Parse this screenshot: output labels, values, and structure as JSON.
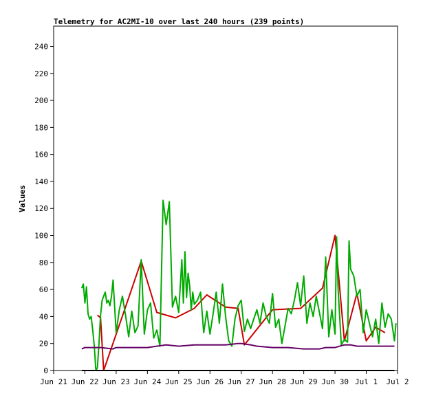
{
  "chart_data": {
    "type": "line",
    "title": "Telemetry for AC2MI-10 over last 240 hours (239 points)",
    "xlabel": "",
    "ylabel": "Values",
    "ylim": [
      0,
      255
    ],
    "yticks": [
      0,
      20,
      40,
      60,
      80,
      100,
      120,
      140,
      160,
      180,
      200,
      220,
      240
    ],
    "xlim": [
      0,
      11
    ],
    "x_ticklabels": [
      "Jun 21",
      "Jun 22",
      "Jun 23",
      "Jun 24",
      "Jun 25",
      "Jun 26",
      "Jun 27",
      "Jun 28",
      "Jun 29",
      "Jun 30",
      "Jul 1",
      "Jul 2"
    ],
    "x_unit": "days since Jun 21 00:00",
    "grid": false,
    "legend": "none",
    "series": [
      {
        "color": "#cc0000",
        "x": [
          1.4,
          1.5,
          1.6,
          2.3,
          2.8,
          3.3,
          3.9,
          4.5,
          4.9,
          5.5,
          5.9,
          6.1,
          7.0,
          7.9,
          8.6,
          9.0,
          9.3,
          9.7,
          10.0,
          10.3,
          10.6
        ],
        "values": [
          41,
          39,
          0,
          47,
          81,
          43,
          39,
          46,
          56,
          47,
          46,
          19,
          45,
          46,
          61,
          100,
          22,
          57,
          22,
          32,
          28
        ]
      },
      {
        "color": "#00aa00",
        "x": [
          0.9,
          0.95,
          1.0,
          1.05,
          1.1,
          1.15,
          1.2,
          1.25,
          1.3,
          1.35,
          1.4,
          1.45,
          1.5,
          1.55,
          1.6,
          1.65,
          1.7,
          1.75,
          1.8,
          1.85,
          1.9,
          2.0,
          2.1,
          2.2,
          2.3,
          2.4,
          2.5,
          2.6,
          2.7,
          2.8,
          2.9,
          3.0,
          3.1,
          3.2,
          3.3,
          3.4,
          3.5,
          3.6,
          3.7,
          3.8,
          3.9,
          4.0,
          4.1,
          4.15,
          4.2,
          4.25,
          4.3,
          4.35,
          4.4,
          4.45,
          4.5,
          4.6,
          4.7,
          4.8,
          4.9,
          5.0,
          5.1,
          5.2,
          5.3,
          5.4,
          5.5,
          5.6,
          5.7,
          5.8,
          5.9,
          6.0,
          6.1,
          6.2,
          6.3,
          6.4,
          6.5,
          6.6,
          6.7,
          6.8,
          6.9,
          7.0,
          7.1,
          7.2,
          7.3,
          7.4,
          7.5,
          7.6,
          7.7,
          7.8,
          7.9,
          8.0,
          8.1,
          8.2,
          8.3,
          8.4,
          8.5,
          8.6,
          8.7,
          8.8,
          8.9,
          9.0,
          9.05,
          9.1,
          9.2,
          9.3,
          9.4,
          9.45,
          9.5,
          9.6,
          9.7,
          9.8,
          9.9,
          10.0,
          10.1,
          10.2,
          10.3,
          10.4,
          10.5,
          10.6,
          10.7,
          10.8,
          10.9,
          10.95
        ],
        "values": [
          61,
          64,
          50,
          62,
          42,
          38,
          40,
          30,
          18,
          0,
          2,
          20,
          41,
          52,
          55,
          58,
          50,
          52,
          48,
          55,
          67,
          28,
          45,
          55,
          41,
          25,
          44,
          28,
          33,
          82,
          27,
          45,
          50,
          24,
          30,
          18,
          126,
          108,
          125,
          47,
          55,
          43,
          82,
          50,
          88,
          54,
          72,
          63,
          45,
          58,
          49,
          52,
          58,
          28,
          44,
          27,
          42,
          58,
          35,
          64,
          40,
          22,
          18,
          38,
          48,
          52,
          29,
          38,
          31,
          38,
          45,
          35,
          50,
          40,
          35,
          57,
          32,
          38,
          20,
          33,
          46,
          42,
          52,
          65,
          48,
          70,
          35,
          50,
          40,
          55,
          43,
          31,
          84,
          25,
          45,
          27,
          99,
          60,
          19,
          23,
          21,
          96,
          75,
          70,
          55,
          60,
          28,
          45,
          35,
          25,
          38,
          20,
          50,
          32,
          42,
          38,
          22,
          35
        ]
      },
      {
        "color": "#660066",
        "x": [
          0.9,
          1.0,
          1.5,
          1.9,
          2.0,
          2.5,
          3.0,
          3.3,
          3.6,
          4.0,
          4.5,
          5.0,
          5.5,
          5.9,
          6.0,
          6.3,
          6.5,
          7.0,
          7.5,
          8.0,
          8.5,
          8.7,
          9.0,
          9.3,
          9.5,
          9.7,
          10.0,
          10.5,
          10.9
        ],
        "values": [
          16,
          17,
          17,
          16,
          17,
          17,
          17,
          18,
          19,
          18,
          19,
          19,
          19,
          20,
          20,
          19,
          18,
          17,
          17,
          16,
          16,
          17,
          17,
          19,
          19,
          18,
          18,
          18,
          18
        ]
      },
      {
        "color": "#000000",
        "x": [
          0.9,
          10.9
        ],
        "values": [
          0,
          0
        ]
      }
    ]
  }
}
